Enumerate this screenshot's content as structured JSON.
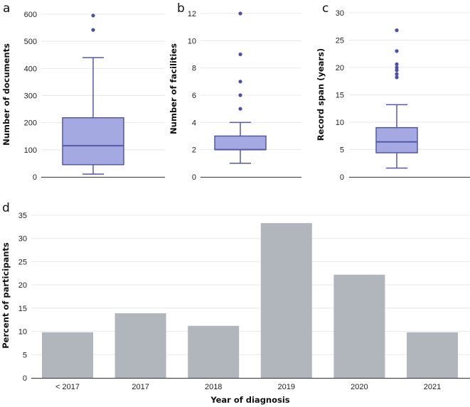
{
  "chart_data": [
    {
      "panel": "a",
      "type": "box",
      "ylabel": "Number of documents",
      "ylim": [
        0,
        600
      ],
      "yticks": [
        0,
        100,
        200,
        300,
        400,
        500,
        600
      ],
      "grid": true,
      "box": {
        "whisker_low": 10,
        "q1": 45,
        "median": 115,
        "q3": 218,
        "whisker_high": 440
      },
      "outliers": [
        542,
        595
      ]
    },
    {
      "panel": "b",
      "type": "box",
      "ylabel": "Number of facilities",
      "ylim": [
        0,
        12
      ],
      "yticks": [
        0,
        2,
        4,
        6,
        8,
        10,
        12
      ],
      "grid": true,
      "box": {
        "whisker_low": 1,
        "q1": 2,
        "median": 2,
        "q3": 3,
        "whisker_high": 4
      },
      "outliers": [
        5,
        6,
        7,
        9,
        12
      ]
    },
    {
      "panel": "c",
      "type": "box",
      "ylabel": "Record span (years)",
      "ylim": [
        0,
        30
      ],
      "yticks": [
        0,
        5,
        10,
        15,
        20,
        25,
        30
      ],
      "grid": true,
      "box": {
        "whisker_low": 1.6,
        "q1": 4.4,
        "median": 6.4,
        "q3": 9.0,
        "whisker_high": 13.2
      },
      "outliers": [
        18.2,
        18.8,
        19.5,
        20.0,
        20.6,
        23.0,
        26.8
      ]
    },
    {
      "panel": "d",
      "type": "bar",
      "xlabel": "Year of diagnosis",
      "ylabel": "Percent of participants",
      "ylim": [
        0,
        35
      ],
      "yticks": [
        0,
        5,
        10,
        15,
        20,
        25,
        30,
        35
      ],
      "grid": true,
      "categories": [
        "< 2017",
        "2017",
        "2018",
        "2019",
        "2020",
        "2021"
      ],
      "values": [
        9.8,
        13.9,
        11.2,
        33.3,
        22.2,
        9.8
      ]
    }
  ],
  "colors": {
    "box_fill": "#a5a9e2",
    "box_stroke": "#5458aa",
    "outlier": "#4c51a6",
    "bar": "#b1b5bc",
    "grid": "#e8e8ec",
    "axis": "#333333"
  }
}
